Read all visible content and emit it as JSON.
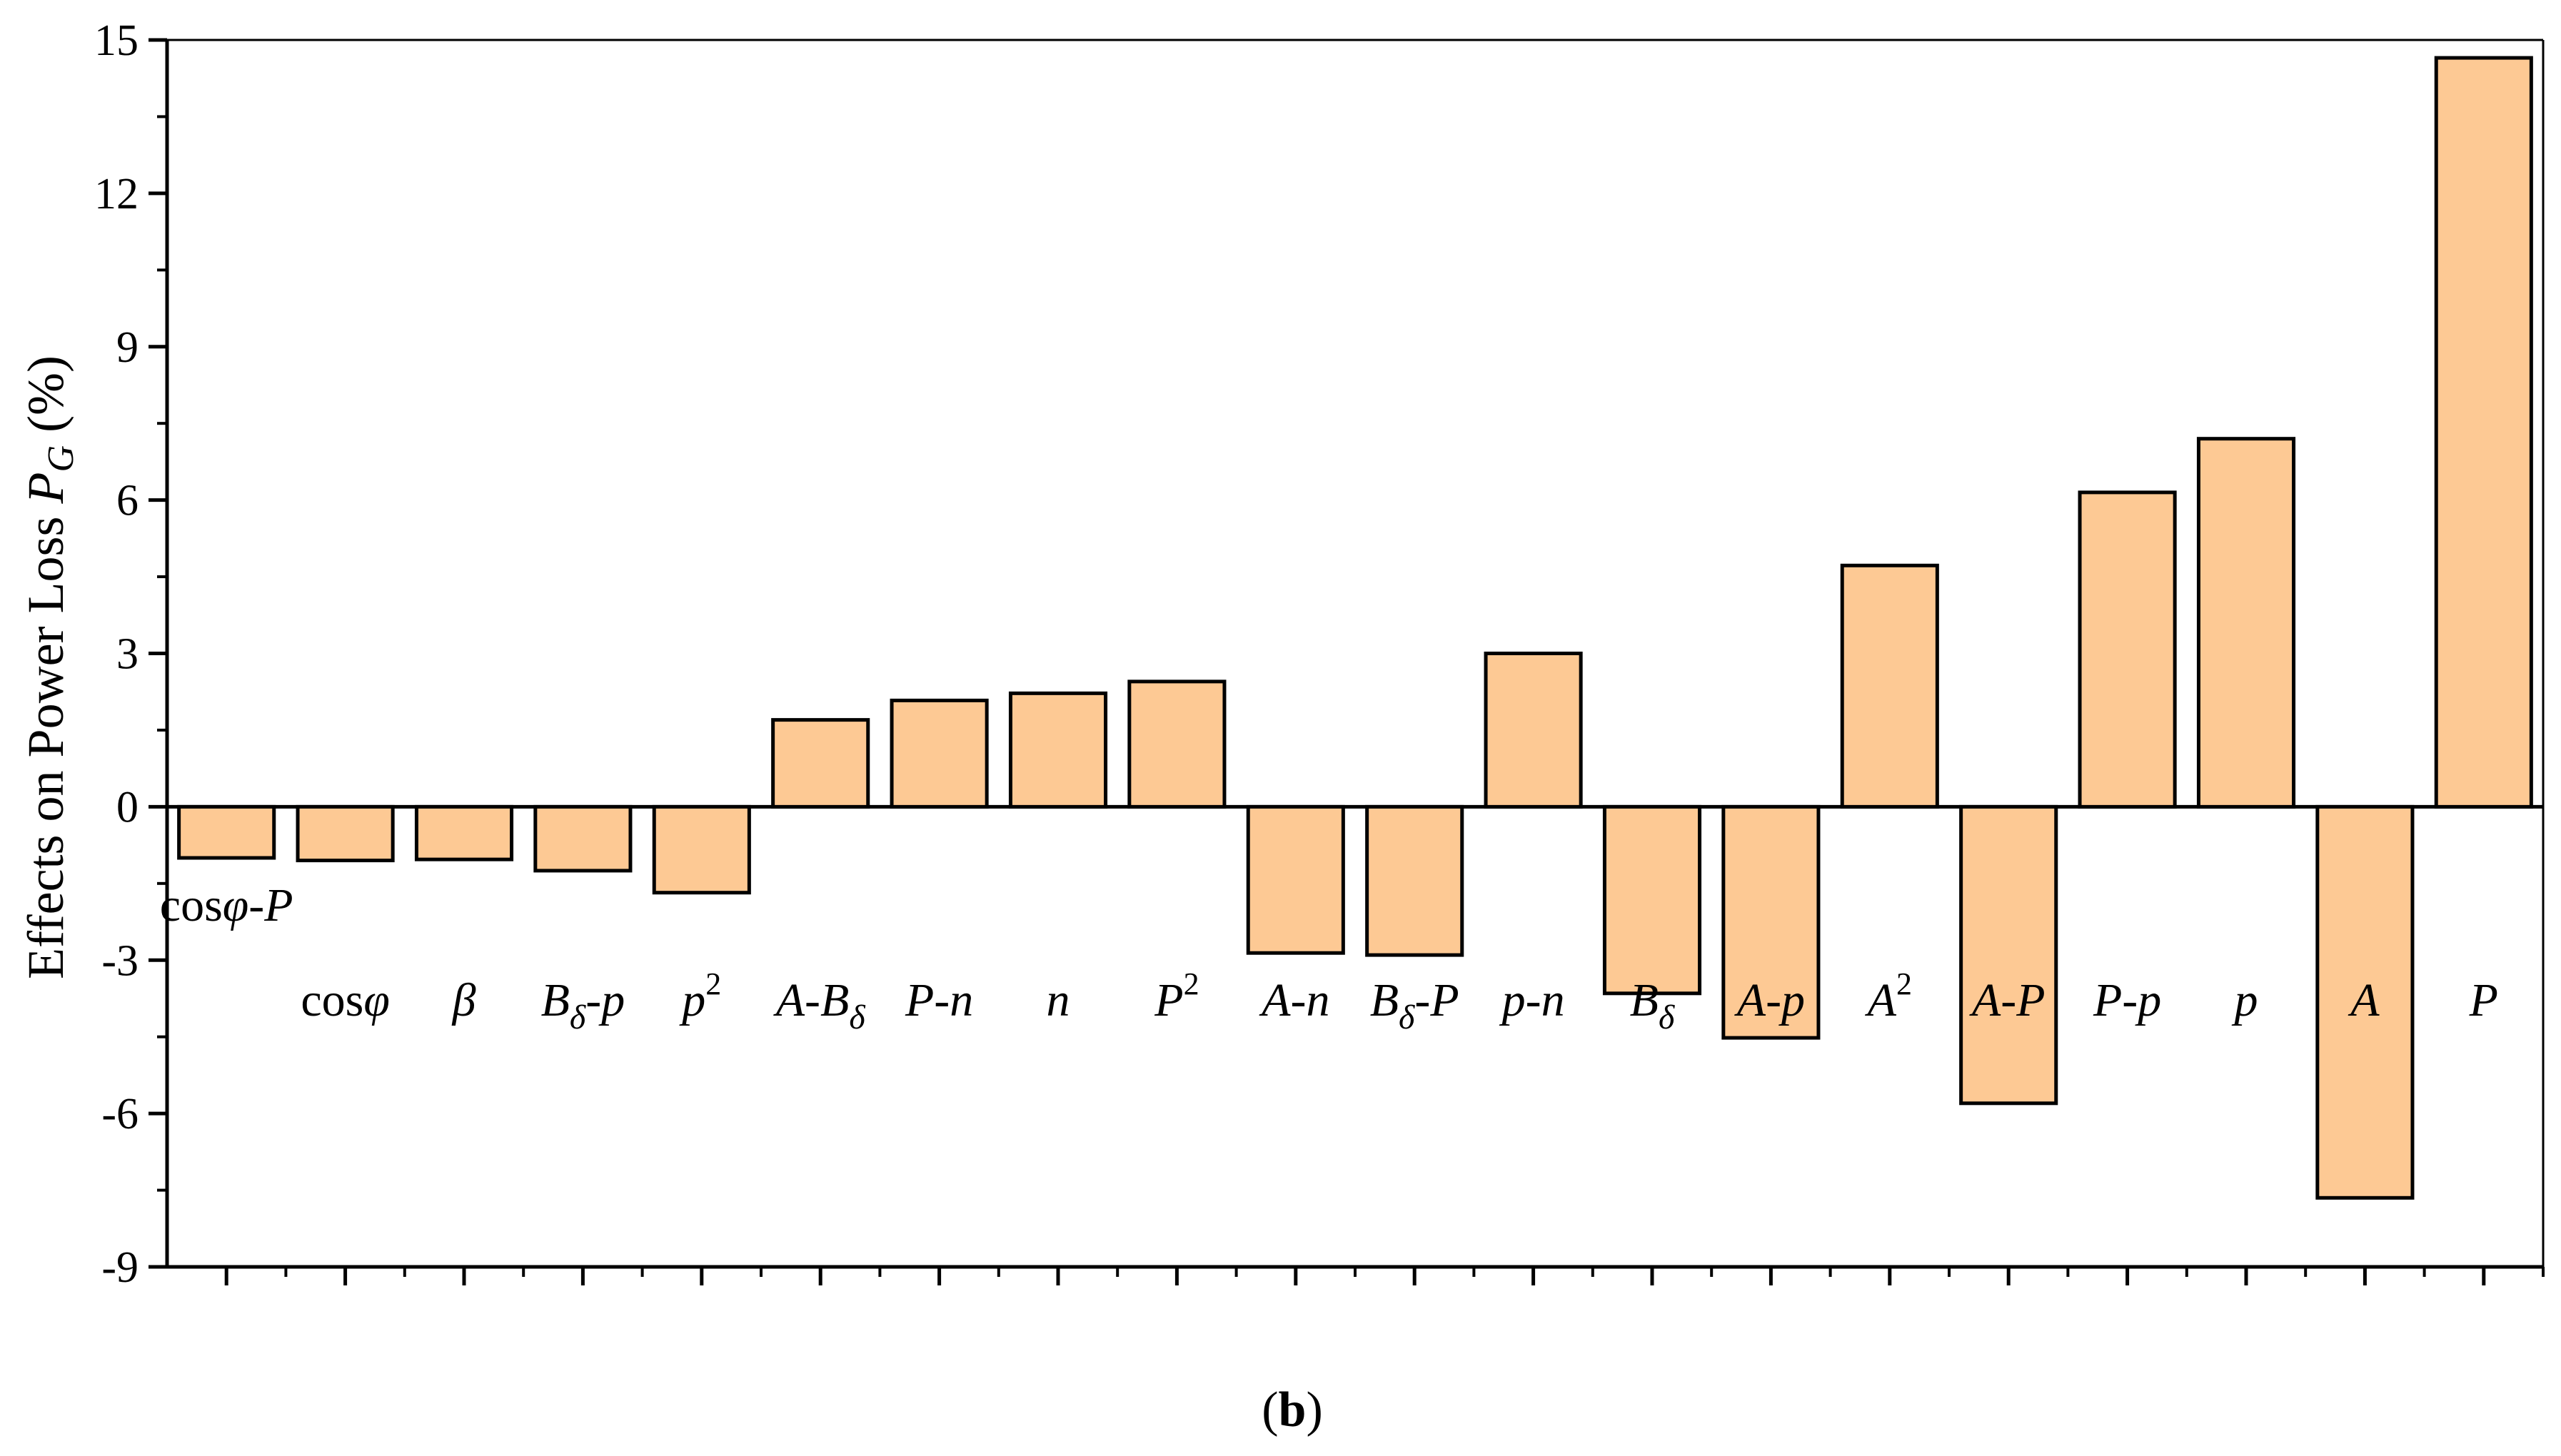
{
  "chart_data": {
    "type": "bar",
    "ylabel": "Effects on Power Loss P_G (%)",
    "ylim": [
      -9,
      15
    ],
    "yticks": [
      -9,
      -6,
      -3,
      0,
      3,
      6,
      9,
      12,
      15
    ],
    "grid": false,
    "bar_color": "#FDC994",
    "bar_edge_color": "#000000",
    "categories": [
      "cosφ-P",
      "cosφ",
      "β",
      "Bδ-p",
      "p²",
      "A-Bδ",
      "P-n",
      "n",
      "P²",
      "A-n",
      "Bδ-P",
      "p-n",
      "Bδ",
      "A-p",
      "A²",
      "A-P",
      "P-p",
      "p",
      "A",
      "P"
    ],
    "values": [
      -1.0,
      -1.05,
      -1.03,
      -1.25,
      -1.68,
      1.7,
      2.08,
      2.22,
      2.45,
      -2.86,
      -2.9,
      3.0,
      -3.65,
      -4.52,
      4.72,
      -5.8,
      6.15,
      7.2,
      -7.65,
      14.65
    ],
    "label_rows": [
      "upper",
      "lower",
      "lower",
      "lower",
      "lower",
      "lower",
      "lower",
      "lower",
      "lower",
      "lower",
      "lower",
      "lower",
      "lower",
      "lower",
      "lower",
      "lower",
      "lower",
      "lower",
      "lower",
      "lower"
    ]
  },
  "caption": {
    "open": "(",
    "letter": "b",
    "close": ")"
  }
}
